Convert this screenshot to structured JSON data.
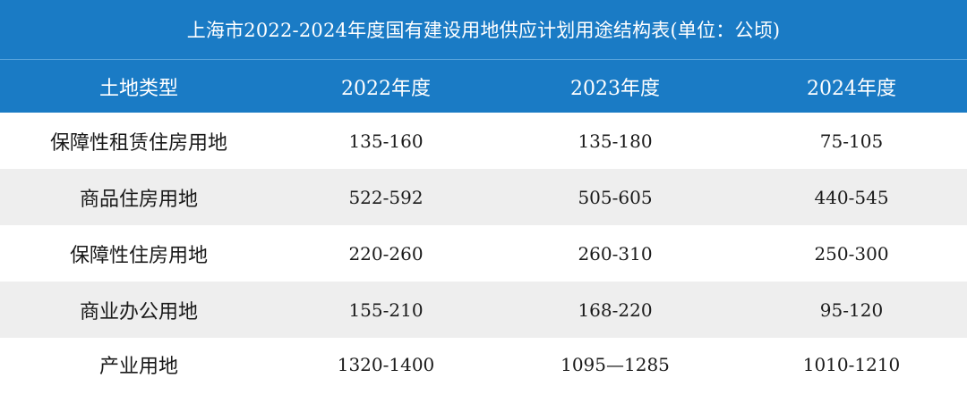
{
  "title": "上海市2022-2024年度国有建设用地供应计划用途结构表(单位：公顷)",
  "header": [
    "土地类型",
    "2022年度",
    "2023年度",
    "2024年度"
  ],
  "rows": [
    [
      "保障性租赁住房用地",
      "135-160",
      "135-180",
      "75-105"
    ],
    [
      "商品住房用地",
      "522-592",
      "505-605",
      "440-545"
    ],
    [
      "保障性住房用地",
      "220-260",
      "260-310",
      "250-300"
    ],
    [
      "商业办公用地",
      "155-210",
      "168-220",
      "95-120"
    ],
    [
      "产业用地",
      "1320-1400",
      "1095—1285",
      "1010-1210"
    ]
  ],
  "colors": {
    "header_bg": "#1a7bc5",
    "header_text": "#ffffff",
    "stripe_bg": "#eeeeee"
  }
}
